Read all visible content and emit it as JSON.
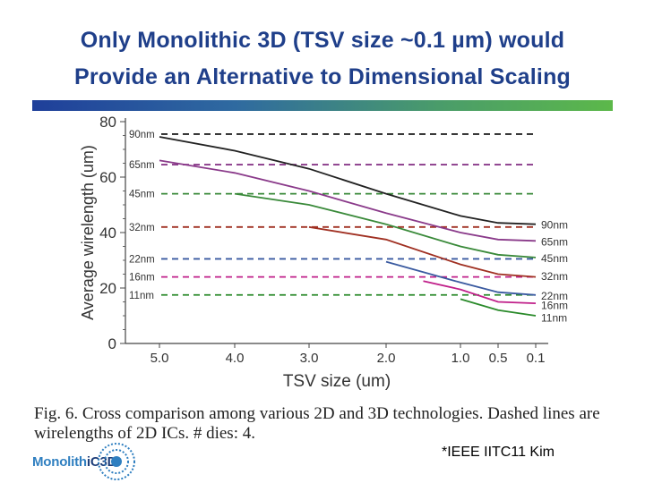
{
  "slide": {
    "title_line1": "Only Monolithic 3D (TSV size ~0.1 µm) would",
    "title_line2": "Provide an Alternative to Dimensional Scaling",
    "caption": "Fig. 6.    Cross comparison among various 2D and 3D technologies. Dashed lines are wirelengths of 2D ICs. # dies: 4.",
    "citation": "*IEEE IITC11 Kim",
    "logo_text_a": "Monolith",
    "logo_text_b": "iC3D",
    "brand_gradient": [
      "#1f3f9a",
      "#5cb84a"
    ],
    "title_color": "#1f3f8a"
  },
  "chart_data": {
    "type": "line",
    "xlabel": "TSV size (um)",
    "ylabel": "Average wirelength (um)",
    "x_ticks": [
      "5.0",
      "4.0",
      "3.0",
      "2.0",
      "1.0",
      "0.5",
      "0.1"
    ],
    "y_ticks": [
      "0",
      "20",
      "40",
      "60",
      "80"
    ],
    "ylim": [
      0,
      80
    ],
    "dashed_2d": [
      {
        "name": "90nm",
        "value": 75.5,
        "color": "#222222"
      },
      {
        "name": "65nm",
        "value": 64.5,
        "color": "#8a3a8a"
      },
      {
        "name": "45nm",
        "value": 54,
        "color": "#3a8a3a"
      },
      {
        "name": "32nm",
        "value": 42,
        "color": "#a03022"
      },
      {
        "name": "22nm",
        "value": 30.5,
        "color": "#3a5aa0"
      },
      {
        "name": "16nm",
        "value": 24,
        "color": "#c0208a"
      },
      {
        "name": "11nm",
        "value": 17.5,
        "color": "#2a8a2a"
      }
    ],
    "series_3d": [
      {
        "name": "90nm",
        "color": "#222222",
        "points": [
          [
            0,
            74.5
          ],
          [
            1,
            69.5
          ],
          [
            2,
            63
          ],
          [
            3,
            54
          ],
          [
            4,
            46
          ],
          [
            5,
            43.5
          ],
          [
            6,
            43
          ]
        ]
      },
      {
        "name": "65nm",
        "color": "#8a3a8a",
        "points": [
          [
            0,
            66
          ],
          [
            1,
            61.5
          ],
          [
            2,
            55
          ],
          [
            3,
            47
          ],
          [
            4,
            40
          ],
          [
            5,
            37.5
          ],
          [
            6,
            37
          ]
        ]
      },
      {
        "name": "45nm",
        "color": "#3a8a3a",
        "points": [
          [
            1,
            54
          ],
          [
            2,
            50
          ],
          [
            3,
            43
          ],
          [
            4,
            35
          ],
          [
            5,
            32
          ],
          [
            6,
            31
          ]
        ]
      },
      {
        "name": "32nm",
        "color": "#a03022",
        "points": [
          [
            2,
            42
          ],
          [
            3,
            37.5
          ],
          [
            4,
            28.5
          ],
          [
            5,
            25
          ],
          [
            6,
            24
          ]
        ]
      },
      {
        "name": "22nm",
        "color": "#3a5aa0",
        "points": [
          [
            3,
            29.5
          ],
          [
            4,
            22
          ],
          [
            5,
            18.5
          ],
          [
            6,
            17.5
          ]
        ]
      },
      {
        "name": "16nm",
        "color": "#c0208a",
        "points": [
          [
            3.5,
            22.5
          ],
          [
            4,
            19.5
          ],
          [
            5,
            15
          ],
          [
            6,
            14.5
          ]
        ]
      },
      {
        "name": "11nm",
        "color": "#2a8a2a",
        "points": [
          [
            4,
            16
          ],
          [
            5,
            12
          ],
          [
            6,
            10
          ]
        ]
      }
    ]
  }
}
